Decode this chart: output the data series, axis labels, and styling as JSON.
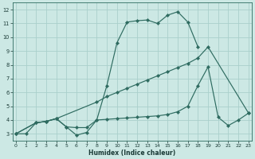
{
  "bg_color": "#cce8e4",
  "grid_color": "#aad0cb",
  "line_color": "#2e6b60",
  "line1_x": [
    0,
    1,
    2,
    3,
    4,
    5,
    6,
    7,
    8,
    9,
    10,
    11,
    12,
    13,
    14,
    15,
    16,
    17,
    18
  ],
  "line1_y": [
    3.0,
    3.0,
    3.8,
    3.9,
    4.1,
    3.5,
    2.9,
    3.1,
    4.0,
    6.5,
    9.6,
    11.1,
    11.2,
    11.25,
    11.0,
    11.6,
    11.85,
    11.1,
    9.3
  ],
  "line2_x": [
    0,
    2,
    3,
    4,
    5,
    6,
    7,
    8,
    9,
    10,
    11,
    12,
    13,
    14,
    15,
    16,
    17,
    18,
    19,
    20,
    21,
    22,
    23
  ],
  "line2_y": [
    3.0,
    3.8,
    3.9,
    4.1,
    3.5,
    3.45,
    3.45,
    4.0,
    4.05,
    4.1,
    4.15,
    4.2,
    4.25,
    4.3,
    4.4,
    4.6,
    5.0,
    6.5,
    7.85,
    4.2,
    3.6,
    4.0,
    4.5
  ],
  "line3_x": [
    0,
    2,
    3,
    4,
    8,
    9,
    10,
    11,
    12,
    13,
    14,
    15,
    16,
    17,
    18,
    19,
    23
  ],
  "line3_y": [
    3.0,
    3.8,
    3.9,
    4.1,
    5.3,
    5.7,
    6.0,
    6.3,
    6.6,
    6.9,
    7.2,
    7.5,
    7.8,
    8.1,
    8.5,
    9.3,
    4.5
  ],
  "xlim": [
    -0.3,
    23.3
  ],
  "ylim": [
    2.5,
    12.5
  ],
  "xticks": [
    0,
    1,
    2,
    3,
    4,
    5,
    6,
    7,
    8,
    9,
    10,
    11,
    12,
    13,
    14,
    15,
    16,
    17,
    18,
    19,
    20,
    21,
    22,
    23
  ],
  "yticks": [
    3,
    4,
    5,
    6,
    7,
    8,
    9,
    10,
    11,
    12
  ],
  "xlabel": "Humidex (Indice chaleur)"
}
